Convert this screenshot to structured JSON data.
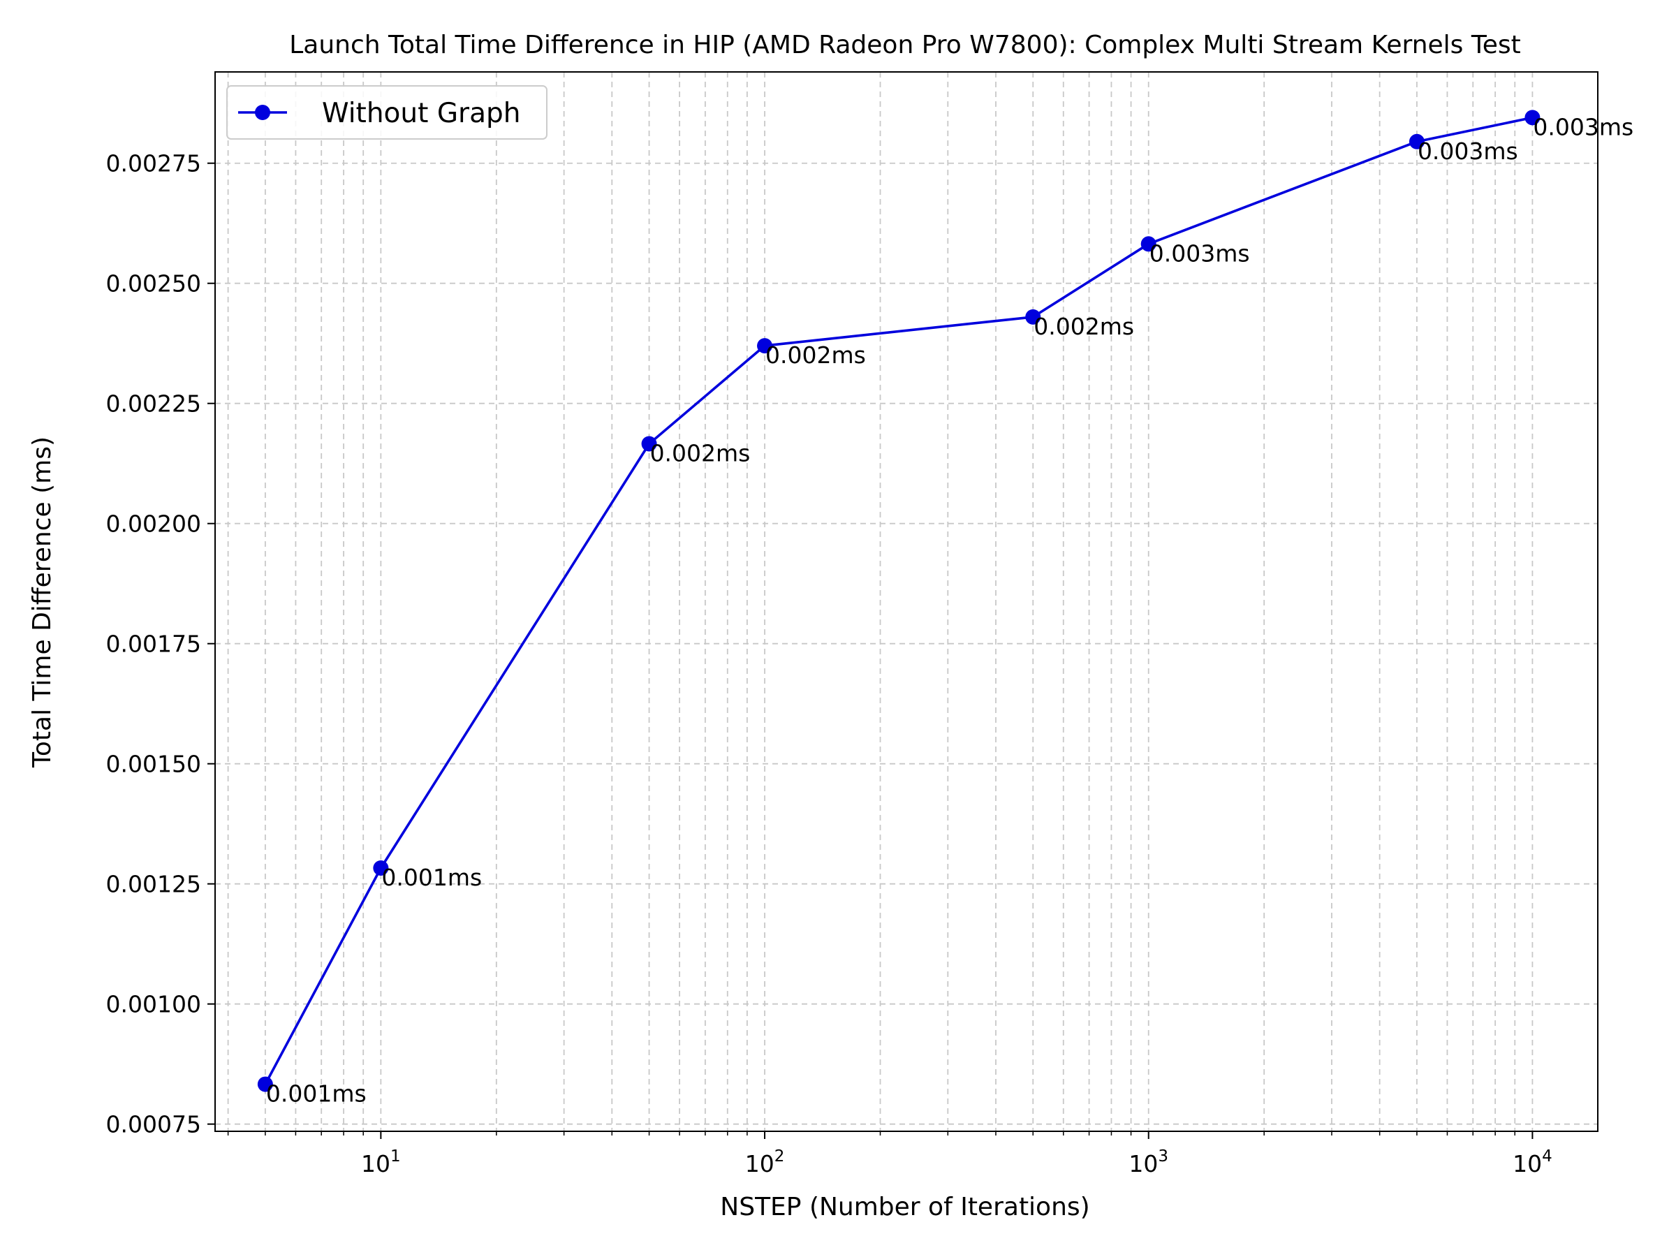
{
  "chart_data": {
    "type": "line",
    "title": "Launch Total Time Difference in HIP (AMD Radeon Pro W7800): Complex Multi Stream Kernels Test",
    "xlabel": "NSTEP (Number of Iterations)",
    "ylabel": "Total Time Difference (ms)",
    "x_scale": "log",
    "xlim": [
      3.7,
      14800
    ],
    "ylim": [
      0.000735,
      0.00294
    ],
    "grid": true,
    "legend_position": "top-left",
    "x_ticks": [
      {
        "value": 10,
        "base": "10",
        "exp": "1"
      },
      {
        "value": 100,
        "base": "10",
        "exp": "2"
      },
      {
        "value": 1000,
        "base": "10",
        "exp": "3"
      },
      {
        "value": 10000,
        "base": "10",
        "exp": "4"
      }
    ],
    "y_ticks": [
      {
        "value": 0.00075,
        "label": "0.00075"
      },
      {
        "value": 0.001,
        "label": "0.00100"
      },
      {
        "value": 0.00125,
        "label": "0.00125"
      },
      {
        "value": 0.0015,
        "label": "0.00150"
      },
      {
        "value": 0.00175,
        "label": "0.00175"
      },
      {
        "value": 0.002,
        "label": "0.00200"
      },
      {
        "value": 0.00225,
        "label": "0.00225"
      },
      {
        "value": 0.0025,
        "label": "0.00250"
      },
      {
        "value": 0.00275,
        "label": "0.00275"
      }
    ],
    "series": [
      {
        "name": "Without Graph",
        "color": "#0000dd",
        "x": [
          5,
          10,
          50,
          100,
          500,
          1000,
          5000,
          10000
        ],
        "y": [
          0.000833,
          0.001283,
          0.002166,
          0.00237,
          0.00243,
          0.002582,
          0.002795,
          0.002845
        ],
        "labels": [
          "0.001ms",
          "0.001ms",
          "0.002ms",
          "0.002ms",
          "0.002ms",
          "0.003ms",
          "0.003ms",
          "0.003ms"
        ]
      }
    ]
  }
}
